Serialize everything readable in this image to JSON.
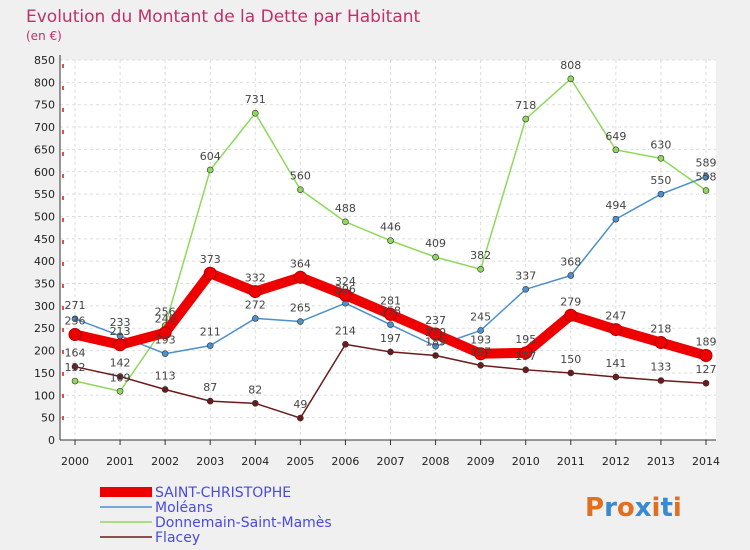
{
  "chart_data": {
    "type": "line",
    "title": "Evolution du Montant de la Dette par Habitant",
    "subtitle": "(en €)",
    "xlabel": "",
    "ylabel": "",
    "x": [
      "2000",
      "2001",
      "2002",
      "2003",
      "2004",
      "2005",
      "2006",
      "2007",
      "2008",
      "2009",
      "2010",
      "2011",
      "2012",
      "2013",
      "2014"
    ],
    "ylim": [
      0,
      850
    ],
    "yticks": [
      "0",
      "50",
      "100",
      "150",
      "200",
      "250",
      "300",
      "350",
      "400",
      "450",
      "500",
      "550",
      "600",
      "650",
      "700",
      "750",
      "800",
      "850"
    ],
    "grid": true,
    "legend_position": "bottom-left",
    "series": [
      {
        "name": "Donnemain-Saint-Mamès",
        "color": "#8ed85c",
        "values": [
          132,
          109,
          256,
          604,
          731,
          560,
          488,
          446,
          409,
          382,
          718,
          808,
          649,
          630,
          558
        ]
      },
      {
        "name": "Moléans",
        "color": "#4e90cc",
        "values": [
          271,
          233,
          193,
          211,
          272,
          265,
          306,
          258,
          210,
          245,
          337,
          368,
          494,
          550,
          589
        ]
      },
      {
        "name": "Flacey",
        "color": "#6b1b1b",
        "values": [
          164,
          142,
          113,
          87,
          82,
          49,
          214,
          197,
          189,
          167,
          157,
          150,
          141,
          133,
          127
        ]
      },
      {
        "name": "SAINT-CHRISTOPHE",
        "color": "#ee0000",
        "values": [
          236,
          213,
          240,
          373,
          332,
          364,
          324,
          281,
          237,
          193,
          195,
          279,
          247,
          218,
          189
        ]
      }
    ]
  },
  "logo": {
    "text": "Proxiti"
  }
}
